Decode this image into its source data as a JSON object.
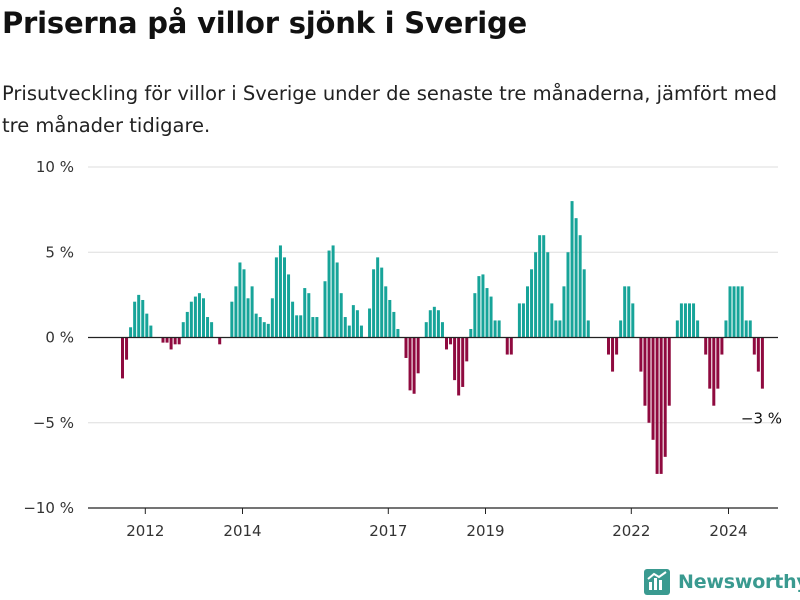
{
  "title": "Priserna på villor sjönk i Sverige",
  "subtitle": "Prisutveckling för villor i Sverige under de senaste tre månaderna, jämfört med tre månader tidigare.",
  "brand": "Newsworthy",
  "colors": {
    "positive": "#17a499",
    "negative": "#8f0a3f",
    "grid": "#dddddd",
    "axis": "#222222",
    "brand": "#3a9a90"
  },
  "chart_data": {
    "type": "bar",
    "ylim": [
      -10,
      10
    ],
    "y_ticks": [
      {
        "value": 10,
        "label": "10 %"
      },
      {
        "value": 5,
        "label": "5 %"
      },
      {
        "value": 0,
        "label": "0 %"
      },
      {
        "value": -5,
        "label": "−5 %"
      },
      {
        "value": -10,
        "label": "−10 %"
      }
    ],
    "x_ticks": [
      {
        "month_index": 6,
        "label": "2012"
      },
      {
        "month_index": 30,
        "label": "2014"
      },
      {
        "month_index": 66,
        "label": "2017"
      },
      {
        "month_index": 90,
        "label": "2019"
      },
      {
        "month_index": 126,
        "label": "2022"
      },
      {
        "month_index": 150,
        "label": "2024"
      }
    ],
    "grid": true,
    "values": [
      -2.4,
      -1.3,
      0.6,
      2.1,
      2.5,
      2.2,
      1.4,
      0.7,
      0,
      0,
      -0.3,
      -0.3,
      -0.7,
      -0.4,
      -0.4,
      0.9,
      1.5,
      2.1,
      2.4,
      2.6,
      2.3,
      1.2,
      0.9,
      0,
      -0.4,
      0,
      0,
      2.1,
      3.0,
      4.4,
      4.0,
      2.3,
      3.0,
      1.4,
      1.2,
      0.9,
      0.8,
      2.3,
      4.7,
      5.4,
      4.7,
      3.7,
      2.1,
      1.3,
      1.3,
      2.9,
      2.6,
      1.2,
      1.2,
      0,
      3.3,
      5.1,
      5.4,
      4.4,
      2.6,
      1.2,
      0.7,
      1.9,
      1.6,
      0.7,
      0,
      1.7,
      4.0,
      4.7,
      4.1,
      3.0,
      2.2,
      1.5,
      0.5,
      0,
      -1.2,
      -3.1,
      -3.3,
      -2.1,
      0,
      0.9,
      1.6,
      1.8,
      1.6,
      0.9,
      -0.7,
      -0.4,
      -2.5,
      -3.4,
      -2.9,
      -1.4,
      0.5,
      2.6,
      3.6,
      3.7,
      2.9,
      2.4,
      1.0,
      1.0,
      0,
      -1.0,
      -1.0,
      0,
      2.0,
      2.0,
      3.0,
      4.0,
      5.0,
      6.0,
      6.0,
      5.0,
      2.0,
      1.0,
      1.0,
      3.0,
      5.0,
      8.0,
      7.0,
      6.0,
      4.0,
      1.0,
      0,
      0,
      0,
      0,
      -1.0,
      -2.0,
      -1.0,
      1.0,
      3.0,
      3.0,
      2.0,
      0,
      -2.0,
      -4.0,
      -5.0,
      -6.0,
      -8.0,
      -8.0,
      -7.0,
      -4.0,
      0,
      1.0,
      2.0,
      2.0,
      2.0,
      2.0,
      1.0,
      0,
      -1.0,
      -3.0,
      -4.0,
      -3.0,
      -1.0,
      1.0,
      3.0,
      3.0,
      3.0,
      3.0,
      1.0,
      1.0,
      -1.0,
      -2.0,
      -3.0
    ],
    "last_label": "−3 %"
  }
}
